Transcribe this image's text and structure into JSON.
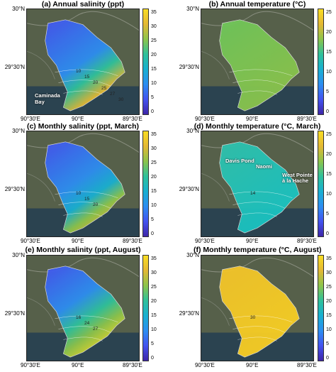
{
  "panels": [
    {
      "title": "(a) Annual salinity (ppt)",
      "field": "salinity",
      "colorbar_ticks": [
        "35",
        "30",
        "25",
        "20",
        "15",
        "10",
        "5",
        "0"
      ],
      "labels": [
        "Caminada",
        "Bay"
      ],
      "contour_labels": [
        "10",
        "15",
        "20",
        "25",
        "27",
        "30"
      ]
    },
    {
      "title": "(b) Annual temperature (°C)",
      "field": "temperature",
      "colorbar_ticks": [
        "25",
        "20",
        "15",
        "10",
        "5",
        "0"
      ],
      "labels": [],
      "contour_labels": []
    },
    {
      "title": "(c) Monthly salinity (ppt, March)",
      "field": "salinity",
      "colorbar_ticks": [
        "35",
        "30",
        "25",
        "20",
        "15",
        "10",
        "5",
        "0"
      ],
      "labels": [],
      "contour_labels": [
        "10",
        "15",
        "20"
      ]
    },
    {
      "title": "(d) Monthly temperature (°C, March)",
      "field": "temperature",
      "colorbar_ticks": [
        "25",
        "20",
        "15",
        "10",
        "5",
        "0"
      ],
      "labels": [
        "Davis Pond",
        "Naomi",
        "West Pointe",
        "à la Hache"
      ],
      "contour_labels": [
        "14"
      ]
    },
    {
      "title": "(e) Monthly salinity (ppt, August)",
      "field": "salinity",
      "colorbar_ticks": [
        "35",
        "30",
        "25",
        "20",
        "15",
        "10",
        "5",
        "0"
      ],
      "labels": [],
      "contour_labels": [
        "16",
        "24",
        "27"
      ]
    },
    {
      "title": "(f) Monthly temperature (°C, August)",
      "field": "temperature",
      "colorbar_ticks": [
        "35",
        "30",
        "25",
        "20",
        "15",
        "10",
        "5",
        "0"
      ],
      "labels": [],
      "contour_labels": [
        "30"
      ]
    }
  ],
  "axes": {
    "y_ticks": [
      "30°N",
      "29°30'N"
    ],
    "x_ticks": [
      "90°30'E",
      "90°E",
      "89°30'E"
    ]
  },
  "colors": {
    "low": "#3e26a8",
    "mid": "#18b0d1",
    "high": "#f9dd23"
  }
}
